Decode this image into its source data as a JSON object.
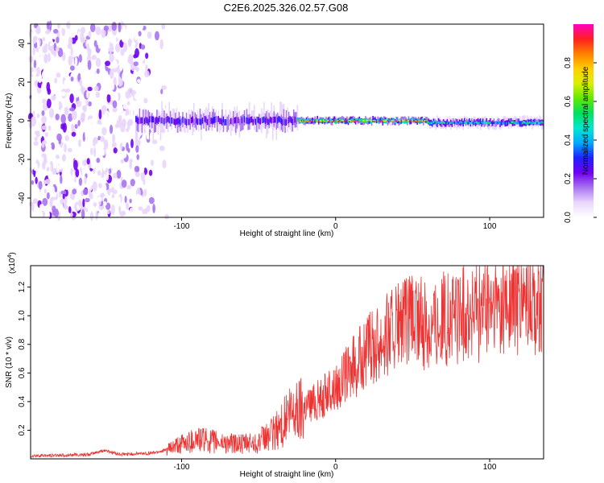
{
  "title": "C2E6.2025.326.02.57.G08",
  "chart_data": [
    {
      "type": "heatmap",
      "xlabel": "Height of straight line (km)",
      "ylabel": "Frequency (Hz)",
      "xlim": [
        -198,
        135
      ],
      "ylim": [
        -50,
        50
      ],
      "x_ticks": [
        -100,
        0,
        100
      ],
      "y_ticks": [
        -40,
        -20,
        0,
        20,
        40
      ],
      "colorbar": {
        "label": "Normalized spectral amplitude",
        "range": [
          0.0,
          1.0
        ],
        "ticks": [
          0.0,
          0.2,
          0.4,
          0.6,
          0.8
        ],
        "colors": [
          "#ffffff",
          "#e9d6fb",
          "#a974f0",
          "#7000f0",
          "#2020ff",
          "#00a8ff",
          "#00e8d0",
          "#00e060",
          "#60e800",
          "#d8f000",
          "#ffd000",
          "#ff8000",
          "#ff2020",
          "#ff00c0"
        ]
      },
      "signal_segments": [
        {
          "x_start": -130,
          "x_end": -25,
          "center_hz": 0,
          "spread_hz": 8,
          "amplitude": 0.3
        },
        {
          "x_start": -25,
          "x_end": 60,
          "center_hz": 0,
          "spread_hz": 2,
          "amplitude": 0.9
        },
        {
          "x_start": 60,
          "x_end": 135,
          "center_hz": -1,
          "spread_hz": 3,
          "amplitude": 0.5
        }
      ],
      "noise_region": {
        "x_start": -198,
        "x_end": -108,
        "amplitude": 0.15
      }
    },
    {
      "type": "line",
      "xlabel": "Height of straight line (km)",
      "ylabel": "SNR (10 * v/v)",
      "y_scale_label": "(x10",
      "y_scale_exp": "4",
      "xlim": [
        -198,
        135
      ],
      "ylim": [
        0,
        1.35
      ],
      "x_ticks": [
        -100,
        0,
        100
      ],
      "y_ticks": [
        0.2,
        0.4,
        0.6,
        0.8,
        1.0,
        1.2
      ],
      "series": [
        {
          "name": "SNR",
          "color": "#ee3333",
          "x": [
            -198,
            -180,
            -160,
            -150,
            -140,
            -130,
            -120,
            -110,
            -100,
            -90,
            -80,
            -70,
            -60,
            -50,
            -40,
            -30,
            -20,
            -10,
            0,
            10,
            20,
            30,
            40,
            50,
            60,
            70,
            80,
            90,
            100,
            110,
            120,
            130,
            135
          ],
          "y": [
            0.02,
            0.025,
            0.03,
            0.06,
            0.03,
            0.035,
            0.04,
            0.06,
            0.1,
            0.14,
            0.12,
            0.11,
            0.1,
            0.12,
            0.18,
            0.3,
            0.38,
            0.42,
            0.5,
            0.62,
            0.74,
            0.86,
            0.92,
            0.96,
            0.93,
            0.97,
            1.0,
            1.02,
            1.05,
            1.07,
            1.09,
            1.1,
            1.08
          ]
        }
      ]
    }
  ]
}
